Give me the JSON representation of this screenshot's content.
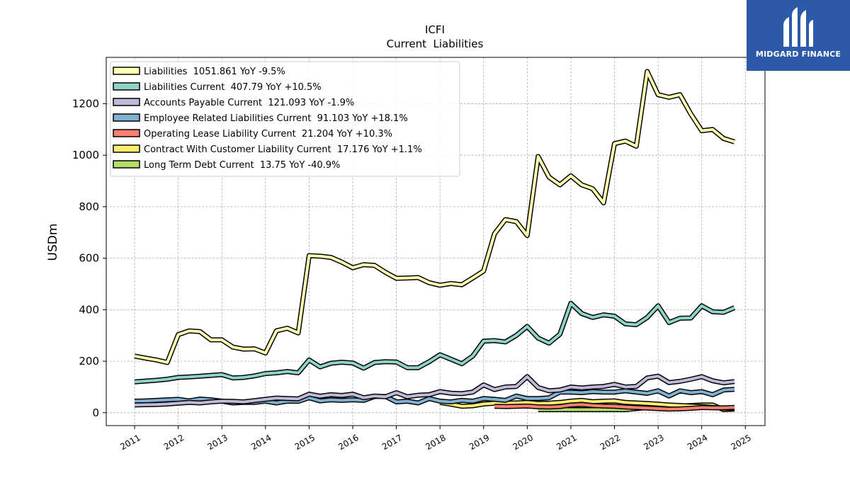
{
  "brand": {
    "name": "MIDGARD FINANCE",
    "color": "#2c5aa8"
  },
  "chart_data": {
    "type": "line",
    "title": "ICFI",
    "subtitle": "Current  Liabilities",
    "xlabel": "",
    "ylabel": "USDm",
    "ylim": [
      -50,
      1380
    ],
    "xlim": [
      2010.35,
      2025.45
    ],
    "grid": true,
    "legend_position": "top-left",
    "x_ticks": [
      "2011",
      "2012",
      "2013",
      "2014",
      "2015",
      "2016",
      "2017",
      "2018",
      "2019",
      "2020",
      "2021",
      "2022",
      "2023",
      "2024",
      "2025"
    ],
    "y_ticks": [
      "0",
      "200",
      "400",
      "600",
      "800",
      "1000",
      "1200"
    ],
    "series": [
      {
        "name": "Liabilities  1051.861 YoY -9.5%",
        "color": "#ffffb3",
        "x": [
          2011.0,
          2011.25,
          2011.5,
          2011.75,
          2012.0,
          2012.25,
          2012.5,
          2012.75,
          2013.0,
          2013.25,
          2013.5,
          2013.75,
          2014.0,
          2014.25,
          2014.5,
          2014.75,
          2015.0,
          2015.25,
          2015.5,
          2015.75,
          2016.0,
          2016.25,
          2016.5,
          2016.75,
          2017.0,
          2017.25,
          2017.5,
          2017.75,
          2018.0,
          2018.25,
          2018.5,
          2018.75,
          2019.0,
          2019.25,
          2019.5,
          2019.75,
          2020.0,
          2020.25,
          2020.5,
          2020.75,
          2021.0,
          2021.25,
          2021.5,
          2021.75,
          2022.0,
          2022.25,
          2022.5,
          2022.75,
          2023.0,
          2023.25,
          2023.5,
          2023.75,
          2024.0,
          2024.25,
          2024.5,
          2024.75
        ],
        "y": [
          220,
          212,
          205,
          195,
          303,
          318,
          315,
          283,
          283,
          255,
          247,
          248,
          232,
          318,
          328,
          310,
          610,
          608,
          603,
          585,
          563,
          575,
          572,
          545,
          522,
          523,
          525,
          505,
          495,
          502,
          497,
          523,
          550,
          695,
          750,
          742,
          688,
          995,
          915,
          885,
          920,
          885,
          870,
          815,
          1045,
          1055,
          1035,
          1325,
          1235,
          1225,
          1235,
          1160,
          1095,
          1100,
          1065,
          1052
        ]
      },
      {
        "name": "Liabilities Current  407.79 YoY +10.5%",
        "color": "#8dd3c7",
        "x": [
          2011.0,
          2011.25,
          2011.5,
          2011.75,
          2012.0,
          2012.25,
          2012.5,
          2012.75,
          2013.0,
          2013.25,
          2013.5,
          2013.75,
          2014.0,
          2014.25,
          2014.5,
          2014.75,
          2015.0,
          2015.25,
          2015.5,
          2015.75,
          2016.0,
          2016.25,
          2016.5,
          2016.75,
          2017.0,
          2017.25,
          2017.5,
          2017.75,
          2018.0,
          2018.25,
          2018.5,
          2018.75,
          2019.0,
          2019.25,
          2019.5,
          2019.75,
          2020.0,
          2020.25,
          2020.5,
          2020.75,
          2021.0,
          2021.25,
          2021.5,
          2021.75,
          2022.0,
          2022.25,
          2022.5,
          2022.75,
          2023.0,
          2023.25,
          2023.5,
          2023.75,
          2024.0,
          2024.25,
          2024.5,
          2024.75
        ],
        "y": [
          120,
          123,
          126,
          130,
          137,
          139,
          142,
          145,
          148,
          135,
          137,
          143,
          152,
          155,
          160,
          155,
          205,
          178,
          192,
          196,
          193,
          173,
          195,
          198,
          197,
          175,
          175,
          198,
          225,
          208,
          190,
          220,
          278,
          280,
          275,
          300,
          335,
          290,
          270,
          305,
          425,
          385,
          370,
          380,
          375,
          345,
          342,
          370,
          415,
          350,
          367,
          368,
          415,
          392,
          390,
          408
        ]
      },
      {
        "name": "Accounts Payable Current  121.093 YoY -1.9%",
        "color": "#bebada",
        "x": [
          2011.0,
          2011.25,
          2011.5,
          2011.75,
          2012.0,
          2012.25,
          2012.5,
          2012.75,
          2013.0,
          2013.25,
          2013.5,
          2013.75,
          2014.0,
          2014.25,
          2014.5,
          2014.75,
          2015.0,
          2015.25,
          2015.5,
          2015.75,
          2016.0,
          2016.25,
          2016.5,
          2016.75,
          2017.0,
          2017.25,
          2017.5,
          2017.75,
          2018.0,
          2018.25,
          2018.5,
          2018.75,
          2019.0,
          2019.25,
          2019.5,
          2019.75,
          2020.0,
          2020.25,
          2020.5,
          2020.75,
          2021.0,
          2021.25,
          2021.5,
          2021.75,
          2022.0,
          2022.25,
          2022.5,
          2022.75,
          2023.0,
          2023.25,
          2023.5,
          2023.75,
          2024.0,
          2024.25,
          2024.5,
          2024.75
        ],
        "y": [
          30,
          31,
          32,
          34,
          37,
          40,
          38,
          42,
          45,
          44,
          42,
          47,
          52,
          57,
          55,
          54,
          72,
          64,
          70,
          67,
          72,
          58,
          65,
          62,
          78,
          62,
          68,
          70,
          82,
          76,
          74,
          80,
          108,
          90,
          100,
          102,
          140,
          98,
          85,
          88,
          100,
          96,
          100,
          102,
          110,
          100,
          102,
          135,
          142,
          117,
          122,
          130,
          140,
          124,
          116,
          121
        ]
      },
      {
        "name": "Employee Related Liabilities Current  91.103 YoY +18.1%",
        "color": "#80b1d3",
        "x": [
          2011.0,
          2011.25,
          2011.5,
          2011.75,
          2012.0,
          2012.25,
          2012.5,
          2012.75,
          2013.0,
          2013.25,
          2013.5,
          2013.75,
          2014.0,
          2014.25,
          2014.5,
          2014.75,
          2015.0,
          2015.25,
          2015.5,
          2015.75,
          2016.0,
          2016.25,
          2016.5,
          2016.75,
          2017.0,
          2017.25,
          2017.5,
          2017.75,
          2018.0,
          2018.25,
          2018.5,
          2018.75,
          2019.0,
          2019.25,
          2019.5,
          2019.75,
          2020.0,
          2020.25,
          2020.5,
          2020.75,
          2021.0,
          2021.25,
          2021.5,
          2021.75,
          2022.0,
          2022.25,
          2022.5,
          2022.75,
          2023.0,
          2023.25,
          2023.5,
          2023.75,
          2024.0,
          2024.25,
          2024.5,
          2024.75
        ],
        "y": [
          45,
          46,
          48,
          50,
          52,
          46,
          53,
          50,
          45,
          38,
          40,
          40,
          45,
          38,
          45,
          44,
          58,
          46,
          50,
          48,
          50,
          48,
          63,
          63,
          42,
          45,
          38,
          55,
          45,
          42,
          48,
          45,
          55,
          52,
          48,
          65,
          55,
          55,
          58,
          80,
          80,
          78,
          82,
          80,
          80,
          85,
          80,
          75,
          85,
          65,
          85,
          78,
          82,
          70,
          88,
          91
        ]
      },
      {
        "name": "Operating Lease Liability Current  21.204 YoY +10.3%",
        "color": "#fb8072",
        "x": [
          2019.25,
          2019.5,
          2019.75,
          2020.0,
          2020.25,
          2020.5,
          2020.75,
          2021.0,
          2021.25,
          2021.5,
          2021.75,
          2022.0,
          2022.25,
          2022.5,
          2022.75,
          2023.0,
          2023.25,
          2023.5,
          2023.75,
          2024.0,
          2024.25,
          2024.5,
          2024.75
        ],
        "y": [
          25,
          24,
          25,
          26,
          23,
          22,
          24,
          30,
          32,
          28,
          26,
          25,
          22,
          20,
          18,
          16,
          14,
          15,
          17,
          20,
          19,
          19,
          21
        ]
      },
      {
        "name": "Contract With Customer Liability Current  17.176 YoY +1.1%",
        "color": "#ffed6f",
        "x": [
          2018.0,
          2018.25,
          2018.5,
          2018.75,
          2019.0,
          2019.25,
          2019.5,
          2019.75,
          2020.0,
          2020.25,
          2020.5,
          2020.75,
          2021.0,
          2021.25,
          2021.5,
          2021.75,
          2022.0,
          2022.25,
          2022.5,
          2022.75,
          2023.0,
          2023.25,
          2023.5,
          2023.75,
          2024.0,
          2024.25,
          2024.5,
          2024.75
        ],
        "y": [
          40,
          33,
          25,
          27,
          34,
          37,
          37,
          38,
          40,
          36,
          37,
          40,
          45,
          48,
          43,
          45,
          46,
          40,
          38,
          36,
          33,
          30,
          28,
          26,
          24,
          20,
          18,
          17
        ]
      },
      {
        "name": "Long Term Debt Current  13.75 YoY -40.9%",
        "color": "#b3de69",
        "x": [
          2020.25,
          2020.5,
          2020.75,
          2021.0,
          2021.25,
          2021.5,
          2021.75,
          2022.0,
          2022.25,
          2022.5,
          2022.75,
          2023.0,
          2023.25,
          2023.5,
          2023.75,
          2024.0,
          2024.25,
          2024.5,
          2024.75
        ],
        "y": [
          12,
          12,
          12,
          12,
          12,
          12,
          12,
          12,
          12,
          16,
          20,
          25,
          25,
          26,
          28,
          30,
          30,
          12,
          13.75
        ]
      }
    ]
  }
}
